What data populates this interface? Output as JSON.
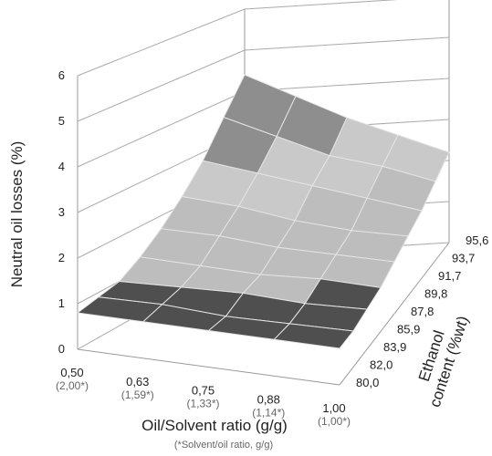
{
  "chart_data": {
    "type": "surface",
    "zlabel": "Neutral oil losses (%)",
    "xlabel": "Oil/Solvent ratio (g/g)",
    "xlabel_note": "(*Solvent/oil ratio, g/g)",
    "ylabel_lines": [
      "Ethanol",
      "content (%wt)"
    ],
    "categories": [
      "0,50",
      "0,63",
      "0,75",
      "0,88",
      "1,00"
    ],
    "category_notes": [
      "(2,00*)",
      "(1,59*)",
      "(1,33*)",
      "(1,14*)",
      "(1,00*)"
    ],
    "y_categories": [
      "80,0",
      "82,0",
      "83,9",
      "85,9",
      "87,8",
      "89,8",
      "91,7",
      "93,7",
      "95,6"
    ],
    "z": [
      [
        0.8,
        0.9,
        1.0,
        1.3,
        1.7,
        2.2,
        2.8,
        3.6,
        4.4
      ],
      [
        0.8,
        0.9,
        1.0,
        1.2,
        1.6,
        2.0,
        2.5,
        3.1,
        3.8
      ],
      [
        0.8,
        0.8,
        1.0,
        1.1,
        1.4,
        1.7,
        2.2,
        2.6,
        3.2
      ],
      [
        0.8,
        0.8,
        0.9,
        1.1,
        1.3,
        1.5,
        1.9,
        2.3,
        2.7
      ],
      [
        0.8,
        0.8,
        0.9,
        1.0,
        1.2,
        1.4,
        1.6,
        1.9,
        2.2
      ]
    ],
    "zlim": [
      0,
      6
    ],
    "zticks": [
      0,
      1,
      2,
      3,
      4,
      5,
      6
    ],
    "band_colors": [
      "#4f4f4f",
      "#bdbdbd",
      "#c9c9c9",
      "#8e8e8e",
      "#626262",
      "#aaaaaa"
    ],
    "grid": true
  }
}
